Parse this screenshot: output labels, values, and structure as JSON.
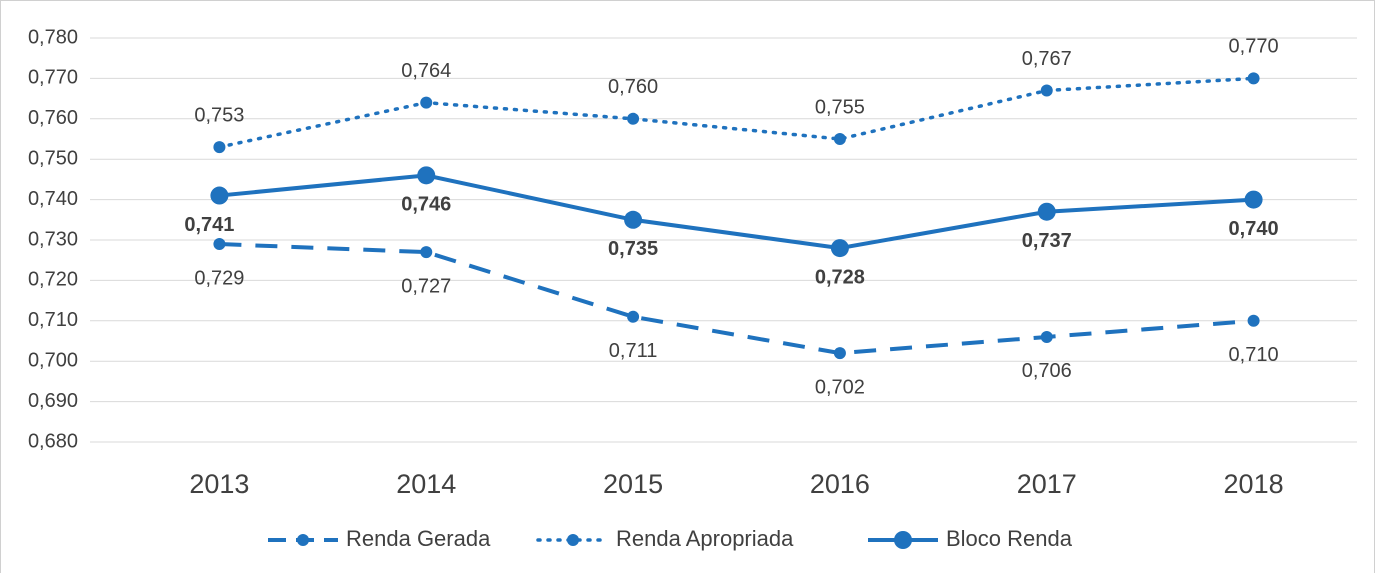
{
  "chart_data": {
    "type": "line",
    "categories": [
      "2013",
      "2014",
      "2015",
      "2016",
      "2017",
      "2018"
    ],
    "series": [
      {
        "name": "Renda Gerada",
        "color": "#1f72be",
        "line_style": "dashed",
        "values": [
          0.729,
          0.727,
          0.711,
          0.702,
          0.706,
          0.71
        ],
        "value_labels": [
          "0,729",
          "0,727",
          "0,711",
          "0,702",
          "0,706",
          "0,710"
        ]
      },
      {
        "name": "Renda Apropriada",
        "color": "#1f72be",
        "line_style": "dotted",
        "values": [
          0.753,
          0.764,
          0.76,
          0.755,
          0.767,
          0.77
        ],
        "value_labels": [
          "0,753",
          "0,764",
          "0,760",
          "0,755",
          "0,767",
          "0,770"
        ]
      },
      {
        "name": "Bloco Renda",
        "color": "#1f72be",
        "line_style": "solid",
        "values": [
          0.741,
          0.746,
          0.735,
          0.728,
          0.737,
          0.74
        ],
        "value_labels": [
          "0,741",
          "0,746",
          "0,735",
          "0,728",
          "0,737",
          "0,740"
        ]
      }
    ],
    "ylim": [
      0.68,
      0.78
    ],
    "yticks": [
      {
        "value": 0.68,
        "label": "0,680"
      },
      {
        "value": 0.69,
        "label": "0,690"
      },
      {
        "value": 0.7,
        "label": "0,700"
      },
      {
        "value": 0.71,
        "label": "0,710"
      },
      {
        "value": 0.72,
        "label": "0,720"
      },
      {
        "value": 0.73,
        "label": "0,730"
      },
      {
        "value": 0.74,
        "label": "0,740"
      },
      {
        "value": 0.75,
        "label": "0,750"
      },
      {
        "value": 0.76,
        "label": "0,760"
      },
      {
        "value": 0.77,
        "label": "0,770"
      },
      {
        "value": 0.78,
        "label": "0,780"
      }
    ],
    "grid": true,
    "legend": "bottom"
  }
}
